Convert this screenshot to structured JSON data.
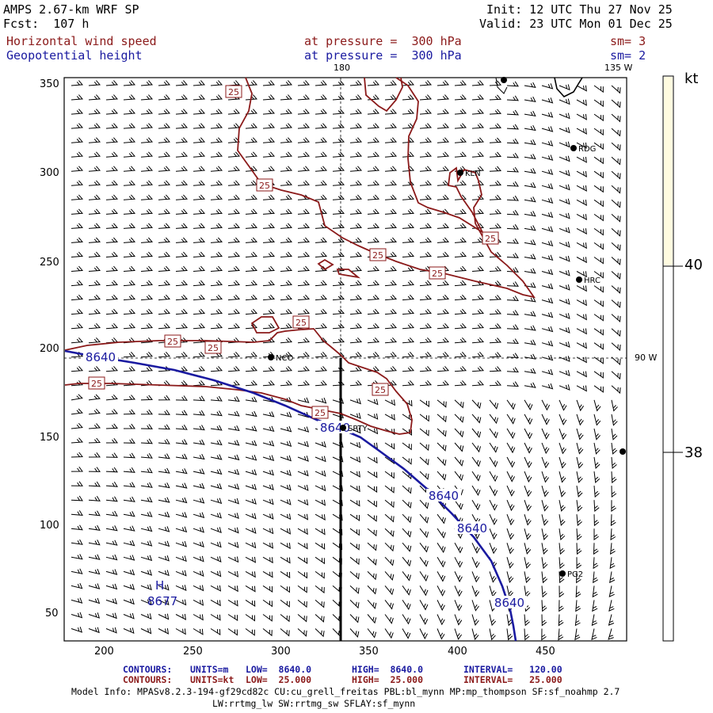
{
  "header": {
    "line1": "AMPS 2.67-km WRF SP",
    "line2": "Fcst:  107 h",
    "init": "Init: 12 UTC Thu 27 Nov 25",
    "valid": "Valid: 23 UTC Mon 01 Dec 25",
    "field1_name": "Horizontal wind speed",
    "field1_level": "at pressure =  300 hPa",
    "field1_sm": "sm= 3",
    "field2_name": "Geopotential height",
    "field2_level": "at pressure =  300 hPa",
    "field2_sm": "sm= 2"
  },
  "map": {
    "meridian_180": "180",
    "meridian_135w": "135 W",
    "parallel_90w": "90 W",
    "y_ticks": [
      "350",
      "300",
      "250",
      "200",
      "150",
      "100",
      "50"
    ],
    "x_ticks": [
      "200",
      "250",
      "300",
      "350",
      "400",
      "450"
    ],
    "stations": [
      {
        "id": "RDG",
        "label": "RDG"
      },
      {
        "id": "KLN",
        "label": "KLN"
      },
      {
        "id": "HRC",
        "label": "HRC"
      },
      {
        "id": "NCO",
        "label": "NCO"
      },
      {
        "id": "SPTY",
        "label": "SPTY"
      },
      {
        "id": "PG2",
        "label": "PG2"
      }
    ],
    "wind_contour_label": "25",
    "height_contour_label": "8640",
    "high_marker": "H",
    "high_value": "8677"
  },
  "colorbar": {
    "unit": "kt",
    "label_40": "40",
    "label_38": "38",
    "top_color": "#fffbe0"
  },
  "footer": {
    "c1_label": "CONTOURS:",
    "c1_units": "UNITS=m",
    "c1_low": "LOW=  8640.0",
    "c1_high": "HIGH=  8640.0",
    "c1_int": "INTERVAL=   120.00",
    "c2_label": "CONTOURS:",
    "c2_units": "UNITS=kt",
    "c2_low": "LOW=  25.000",
    "c2_high": "HIGH=  25.000",
    "c2_int": "INTERVAL=   25.000",
    "model1": "Model Info: MPASv8.2.3-194-gf29cd82c CU:cu_grell_freitas PBL:bl_mynn MP:mp_thompson SF:sf_noahmp 2.7",
    "model2": "LW:rrtmg_lw SW:rrtmg_sw SFLAY:sf_mynn"
  },
  "colors": {
    "wind_contour": "#8b1a1a",
    "height_contour": "#1a1aa0"
  }
}
